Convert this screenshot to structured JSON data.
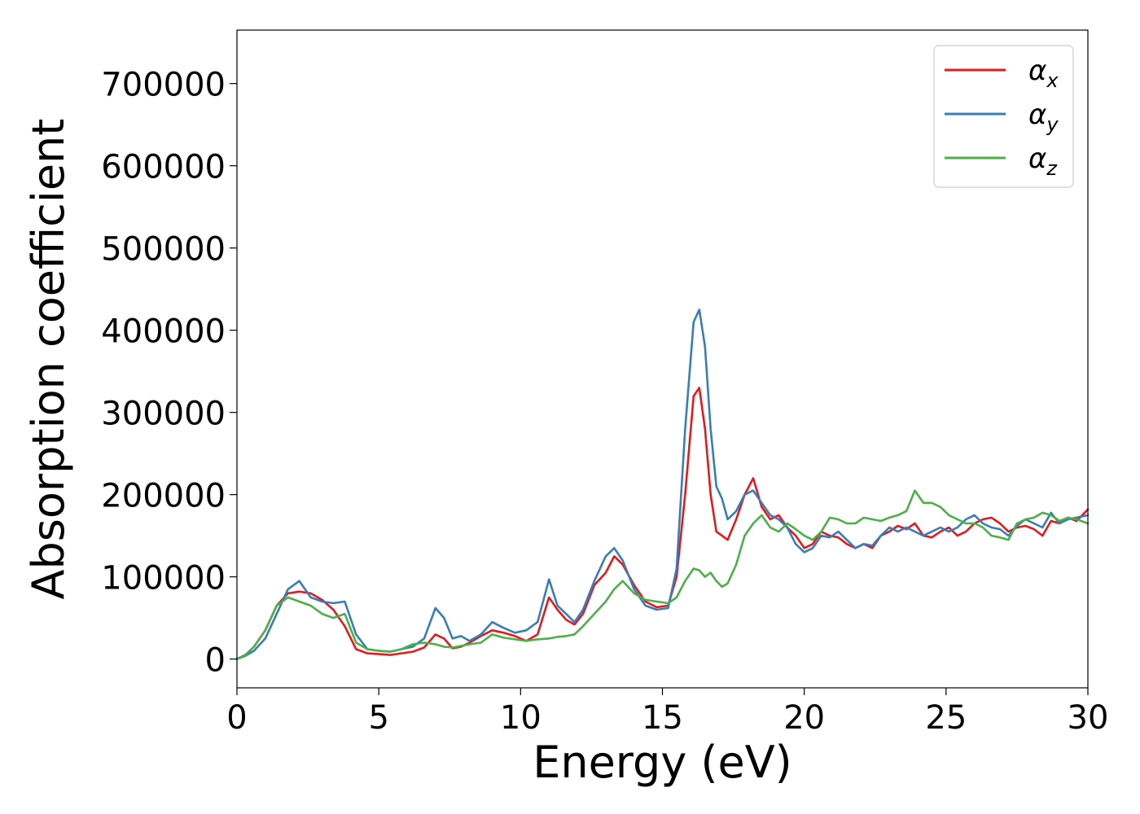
{
  "chart_data": {
    "type": "line",
    "title": "",
    "xlabel": "Energy (eV)",
    "ylabel": "Absorption coefficient",
    "xlim": [
      0,
      30
    ],
    "ylim": [
      -35000,
      765000
    ],
    "xticks": [
      0,
      5,
      10,
      15,
      20,
      25,
      30
    ],
    "yticks": [
      0,
      100000,
      200000,
      300000,
      400000,
      500000,
      600000,
      700000
    ],
    "grid": false,
    "legend_position": "top-right",
    "series": [
      {
        "name": "α_x",
        "name_base": "α",
        "name_sub": "x",
        "color": "#e41a1c",
        "x": [
          0,
          0.3,
          0.6,
          1.0,
          1.4,
          1.8,
          2.2,
          2.6,
          3.0,
          3.4,
          3.8,
          4.2,
          4.6,
          5.0,
          5.4,
          5.8,
          6.2,
          6.6,
          7.0,
          7.3,
          7.6,
          7.9,
          8.2,
          8.6,
          9.0,
          9.4,
          9.8,
          10.2,
          10.6,
          11.0,
          11.3,
          11.6,
          11.9,
          12.2,
          12.6,
          13.0,
          13.3,
          13.6,
          14.0,
          14.4,
          14.8,
          15.2,
          15.5,
          15.8,
          16.1,
          16.3,
          16.5,
          16.7,
          16.9,
          17.1,
          17.3,
          17.6,
          17.9,
          18.2,
          18.5,
          18.8,
          19.1,
          19.4,
          19.7,
          20.0,
          20.3,
          20.6,
          20.9,
          21.2,
          21.5,
          21.8,
          22.1,
          22.4,
          22.7,
          23.0,
          23.3,
          23.6,
          23.9,
          24.2,
          24.5,
          24.8,
          25.1,
          25.4,
          25.7,
          26.0,
          26.3,
          26.6,
          26.9,
          27.2,
          27.5,
          27.8,
          28.1,
          28.4,
          28.7,
          29.0,
          29.3,
          29.6,
          30.0
        ],
        "values": [
          0,
          5000,
          15000,
          35000,
          65000,
          80000,
          82000,
          80000,
          72000,
          60000,
          40000,
          12000,
          7000,
          6000,
          5000,
          7000,
          9000,
          14000,
          30000,
          25000,
          13000,
          15000,
          20000,
          28000,
          35000,
          32000,
          28000,
          22000,
          30000,
          75000,
          60000,
          48000,
          42000,
          55000,
          90000,
          105000,
          125000,
          115000,
          90000,
          70000,
          63000,
          65000,
          100000,
          200000,
          320000,
          330000,
          280000,
          200000,
          155000,
          150000,
          145000,
          170000,
          200000,
          220000,
          185000,
          170000,
          175000,
          160000,
          150000,
          135000,
          140000,
          155000,
          150000,
          148000,
          140000,
          135000,
          140000,
          135000,
          150000,
          155000,
          162000,
          158000,
          165000,
          150000,
          148000,
          155000,
          160000,
          150000,
          155000,
          165000,
          170000,
          172000,
          165000,
          155000,
          160000,
          162000,
          158000,
          150000,
          168000,
          165000,
          172000,
          168000,
          182000
        ]
      },
      {
        "name": "α_y",
        "name_base": "α",
        "name_sub": "y",
        "color": "#377eb8",
        "x": [
          0,
          0.3,
          0.6,
          1.0,
          1.4,
          1.8,
          2.2,
          2.6,
          3.0,
          3.4,
          3.8,
          4.2,
          4.6,
          5.0,
          5.4,
          5.8,
          6.2,
          6.6,
          7.0,
          7.3,
          7.6,
          7.9,
          8.2,
          8.6,
          9.0,
          9.4,
          9.8,
          10.2,
          10.6,
          11.0,
          11.3,
          11.6,
          11.9,
          12.2,
          12.6,
          13.0,
          13.3,
          13.6,
          14.0,
          14.4,
          14.8,
          15.2,
          15.5,
          15.8,
          16.1,
          16.3,
          16.5,
          16.7,
          16.9,
          17.1,
          17.3,
          17.6,
          17.9,
          18.2,
          18.5,
          18.8,
          19.1,
          19.4,
          19.7,
          20.0,
          20.3,
          20.6,
          20.9,
          21.2,
          21.5,
          21.8,
          22.1,
          22.4,
          22.7,
          23.0,
          23.3,
          23.6,
          23.9,
          24.2,
          24.5,
          24.8,
          25.1,
          25.4,
          25.7,
          26.0,
          26.3,
          26.6,
          26.9,
          27.2,
          27.5,
          27.8,
          28.1,
          28.4,
          28.7,
          29.0,
          29.3,
          29.6,
          30.0
        ],
        "values": [
          0,
          4000,
          10000,
          25000,
          55000,
          85000,
          95000,
          75000,
          70000,
          68000,
          70000,
          30000,
          12000,
          10000,
          9000,
          12000,
          15000,
          25000,
          62000,
          50000,
          25000,
          28000,
          22000,
          30000,
          45000,
          38000,
          32000,
          35000,
          45000,
          97000,
          65000,
          55000,
          45000,
          60000,
          95000,
          125000,
          135000,
          120000,
          85000,
          65000,
          60000,
          62000,
          110000,
          280000,
          410000,
          425000,
          380000,
          280000,
          210000,
          195000,
          170000,
          180000,
          200000,
          205000,
          190000,
          175000,
          170000,
          160000,
          140000,
          130000,
          135000,
          150000,
          148000,
          155000,
          145000,
          135000,
          140000,
          138000,
          150000,
          160000,
          155000,
          160000,
          155000,
          150000,
          155000,
          160000,
          155000,
          160000,
          170000,
          175000,
          165000,
          160000,
          158000,
          150000,
          162000,
          170000,
          165000,
          160000,
          178000,
          165000,
          170000,
          172000,
          175000
        ]
      },
      {
        "name": "α_z",
        "name_base": "α",
        "name_sub": "z",
        "color": "#4daf4a",
        "x": [
          0,
          0.3,
          0.6,
          1.0,
          1.4,
          1.8,
          2.2,
          2.6,
          3.0,
          3.4,
          3.8,
          4.2,
          4.6,
          5.0,
          5.4,
          5.8,
          6.2,
          6.6,
          7.0,
          7.3,
          7.6,
          7.9,
          8.2,
          8.6,
          9.0,
          9.4,
          9.8,
          10.2,
          10.6,
          11.0,
          11.3,
          11.6,
          11.9,
          12.2,
          12.6,
          13.0,
          13.3,
          13.6,
          14.0,
          14.4,
          14.8,
          15.2,
          15.5,
          15.8,
          16.1,
          16.3,
          16.5,
          16.7,
          16.9,
          17.1,
          17.3,
          17.6,
          17.9,
          18.2,
          18.5,
          18.8,
          19.1,
          19.4,
          19.7,
          20.0,
          20.3,
          20.6,
          20.9,
          21.2,
          21.5,
          21.8,
          22.1,
          22.4,
          22.7,
          23.0,
          23.3,
          23.6,
          23.9,
          24.2,
          24.5,
          24.8,
          25.1,
          25.4,
          25.7,
          26.0,
          26.3,
          26.6,
          26.9,
          27.2,
          27.5,
          27.8,
          28.1,
          28.4,
          28.7,
          29.0,
          29.3,
          29.6,
          30.0
        ],
        "values": [
          0,
          5000,
          15000,
          35000,
          65000,
          75000,
          70000,
          65000,
          55000,
          50000,
          55000,
          20000,
          12000,
          10000,
          9000,
          12000,
          18000,
          20000,
          18000,
          15000,
          14000,
          16000,
          18000,
          20000,
          30000,
          26000,
          24000,
          22000,
          24000,
          25000,
          27000,
          28000,
          30000,
          40000,
          55000,
          70000,
          85000,
          95000,
          80000,
          72000,
          70000,
          68000,
          75000,
          95000,
          110000,
          108000,
          100000,
          105000,
          95000,
          88000,
          92000,
          115000,
          150000,
          165000,
          175000,
          160000,
          155000,
          165000,
          158000,
          150000,
          145000,
          155000,
          172000,
          170000,
          165000,
          165000,
          172000,
          170000,
          168000,
          172000,
          175000,
          180000,
          205000,
          190000,
          190000,
          185000,
          175000,
          170000,
          165000,
          165000,
          160000,
          150000,
          148000,
          145000,
          165000,
          170000,
          172000,
          178000,
          175000,
          168000,
          172000,
          170000,
          165000
        ]
      }
    ]
  }
}
